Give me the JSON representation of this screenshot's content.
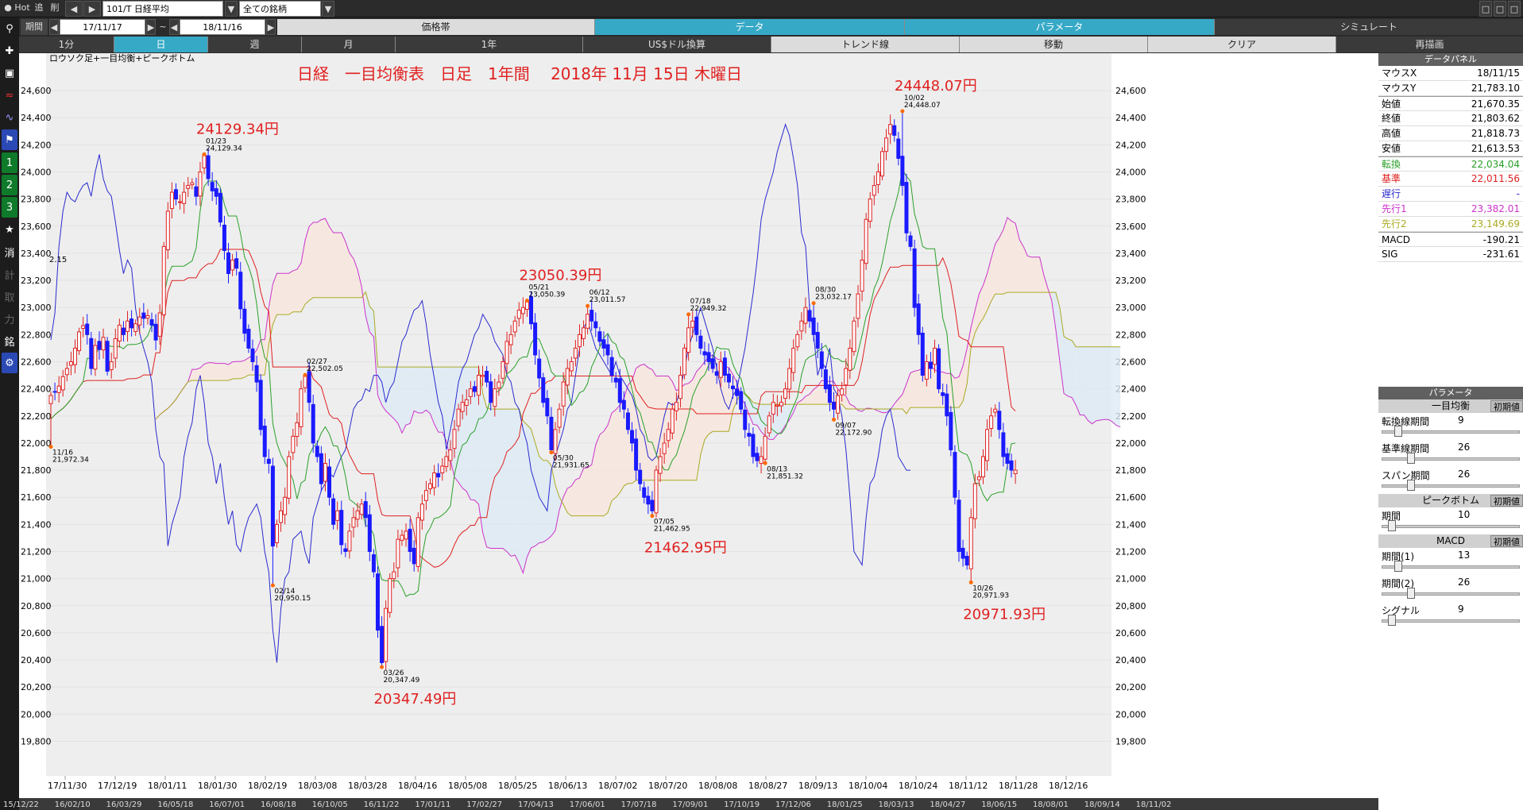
{
  "toolbar": {
    "hot": "Hot",
    "add": "追",
    "del": "削",
    "symbol": "101/T 日経平均",
    "list": "全ての銘柄",
    "period_label": "期間",
    "date_from": "17/11/17",
    "tilde": "~",
    "date_to": "18/11/16",
    "tabs": [
      "価格帯",
      "データ",
      "パラメータ",
      "シミュレート"
    ],
    "timeframes": [
      "1分",
      "日",
      "週",
      "月",
      "1年",
      "US$ドル換算",
      "トレンド線",
      "移動",
      "クリア",
      "再描画"
    ]
  },
  "leftbar": {
    "icons": [
      "search-icon",
      "crosshair-icon",
      "camera-icon",
      "chart-icon",
      "line-chart-icon",
      "flag-icon"
    ],
    "nums": [
      "1",
      "2",
      "3"
    ],
    "chars": [
      "消",
      "計",
      "取",
      "力",
      "銘"
    ]
  },
  "chart_data": {
    "type": "candlestick",
    "title": "日経　一目均衡表　日足　1年間　 2018年 11月 15日 木曜日",
    "legend_text": "ロウソク足+一目均衡+ピークボトム",
    "left_label": "2.15",
    "ylim": [
      19750,
      24700
    ],
    "y_ticks": [
      19800,
      20000,
      20200,
      20400,
      20600,
      20800,
      21000,
      21200,
      21400,
      21600,
      21800,
      22000,
      22200,
      22400,
      22600,
      22800,
      23000,
      23200,
      23400,
      23600,
      23800,
      24000,
      24200,
      24400,
      24600
    ],
    "x_labels": [
      "17/11/30",
      "17/12/19",
      "18/01/11",
      "18/01/30",
      "18/02/19",
      "18/03/08",
      "18/03/28",
      "18/04/16",
      "18/05/08",
      "18/05/25",
      "18/06/13",
      "18/07/02",
      "18/07/20",
      "18/08/08",
      "18/08/27",
      "18/09/13",
      "18/10/04",
      "18/10/24",
      "18/11/12",
      "18/11/28",
      "18/12/16"
    ],
    "bottom_dates": [
      "15/12/22",
      "16/02/10",
      "16/03/29",
      "16/05/18",
      "16/07/01",
      "16/08/18",
      "16/10/05",
      "16/11/22",
      "17/01/11",
      "17/02/27",
      "17/04/13",
      "17/06/01",
      "17/07/18",
      "17/09/01",
      "17/10/19",
      "17/12/06",
      "18/01/25",
      "18/03/13",
      "18/04/27",
      "18/06/15",
      "18/08/01",
      "18/09/14",
      "18/11/02"
    ],
    "peaks": [
      {
        "i": 0,
        "date": "11/16",
        "value": "21,972.34",
        "big": ""
      },
      {
        "i": 38,
        "date": "01/23",
        "value": "24,129.34",
        "big": "24129.34円"
      },
      {
        "i": 55,
        "date": "02/14",
        "value": "20,950.15",
        "big": ""
      },
      {
        "i": 63,
        "date": "02/27",
        "value": "22,502.05",
        "big": ""
      },
      {
        "i": 82,
        "date": "03/26",
        "value": "20,347.49",
        "big": "20347.49円"
      },
      {
        "i": 118,
        "date": "05/21",
        "value": "23,050.39",
        "big": "23050.39円"
      },
      {
        "i": 124,
        "date": "05/30",
        "value": "21,931.65",
        "big": ""
      },
      {
        "i": 133,
        "date": "06/12",
        "value": "23,011.57",
        "big": ""
      },
      {
        "i": 149,
        "date": "07/05",
        "value": "21,462.95",
        "big": "21462.95円"
      },
      {
        "i": 158,
        "date": "07/18",
        "value": "22,949.32",
        "big": ""
      },
      {
        "i": 177,
        "date": "08/13",
        "value": "21,851.32",
        "big": ""
      },
      {
        "i": 189,
        "date": "08/30",
        "value": "23,032.17",
        "big": ""
      },
      {
        "i": 194,
        "date": "09/07",
        "value": "22,172.90",
        "big": ""
      },
      {
        "i": 211,
        "date": "10/02",
        "value": "24,448.07",
        "big": "24448.07円"
      },
      {
        "i": 228,
        "date": "10/26",
        "value": "20,971.93",
        "big": "20971.93円"
      }
    ],
    "series": [
      {
        "name": "転換",
        "color": "#2aa02a"
      },
      {
        "name": "基準",
        "color": "#e02020"
      },
      {
        "name": "遅行",
        "color": "#2a2ad0"
      },
      {
        "name": "先行1",
        "color": "#cc33cc"
      },
      {
        "name": "先行2",
        "color": "#aaaa22"
      }
    ],
    "closes": [
      22351,
      22380,
      22420,
      22490,
      22550,
      22600,
      22700,
      22820,
      22866,
      22800,
      22550,
      22720,
      22690,
      22780,
      22530,
      22600,
      22770,
      22870,
      22800,
      22900,
      22850,
      22880,
      22930,
      22920,
      22940,
      22870,
      22760,
      22960,
      23450,
      23710,
      23850,
      23800,
      23780,
      23850,
      23900,
      23920,
      23820,
      24000,
      24129,
      23950,
      23860,
      23820,
      23630,
      23420,
      23250,
      23350,
      23290,
      22990,
      22810,
      22700,
      22600,
      22450,
      22100,
      21900,
      21850,
      21240,
      21400,
      21500,
      21600,
      21900,
      22050,
      22150,
      22400,
      22500,
      22300,
      22000,
      21900,
      21700,
      21850,
      21600,
      21400,
      21500,
      21250,
      21200,
      21350,
      21450,
      21500,
      21550,
      21450,
      21200,
      21050,
      20620,
      20380,
      20780,
      21000,
      21050,
      21290,
      21320,
      21350,
      21200,
      21110,
      21450,
      21550,
      21650,
      21700,
      21780,
      21750,
      21830,
      21900,
      21950,
      22100,
      22250,
      22300,
      22320,
      22400,
      22380,
      22500,
      22500,
      22450,
      22300,
      22400,
      22450,
      22600,
      22750,
      22800,
      22900,
      22980,
      23000,
      23050,
      22880,
      22650,
      22480,
      22300,
      22200,
      21950,
      22100,
      22250,
      22450,
      22550,
      22600,
      22700,
      22800,
      22850,
      22950,
      22900,
      22850,
      22750,
      22700,
      22650,
      22500,
      22450,
      22300,
      22250,
      22100,
      22000,
      21800,
      21700,
      21600,
      21550,
      21500,
      21800,
      21900,
      22000,
      22100,
      22250,
      22300,
      22500,
      22700,
      22850,
      22900,
      22800,
      22700,
      22650,
      22600,
      22550,
      22500,
      22600,
      22500,
      22450,
      22400,
      22350,
      22250,
      22100,
      22050,
      21900,
      21870,
      21900,
      22050,
      22200,
      22300,
      22280,
      22300,
      22400,
      22550,
      22700,
      22800,
      22900,
      23000,
      22900,
      22800,
      22700,
      22550,
      22400,
      22300,
      22250,
      22350,
      22400,
      22550,
      22700,
      22900,
      23100,
      23350,
      23650,
      23800,
      23900,
      24000,
      24150,
      24250,
      24350,
      24270,
      24100,
      23900,
      23550,
      23450,
      23000,
      22800,
      22500,
      22600,
      22550,
      22700,
      22400,
      22350,
      22200,
      21950,
      21600,
      21200,
      21150,
      21100,
      21450,
      21700,
      21750,
      21900,
      22100,
      22200,
      22250,
      22100,
      21900,
      21850,
      21800,
      21800
    ]
  },
  "panel": {
    "title": "データパネル",
    "rows": [
      {
        "label": "マウスX",
        "value": "18/11/15",
        "color": "#000000"
      },
      {
        "label": "マウスY",
        "value": "21,783.10",
        "color": "#000000"
      },
      {
        "label": "始値",
        "value": "21,670.35",
        "color": "#000000"
      },
      {
        "label": "終値",
        "value": "21,803.62",
        "color": "#000000"
      },
      {
        "label": "高値",
        "value": "21,818.73",
        "color": "#000000"
      },
      {
        "label": "安値",
        "value": "21,613.53",
        "color": "#000000"
      },
      {
        "label": "転換",
        "value": "22,034.04",
        "color": "#2aa02a"
      },
      {
        "label": "基準",
        "value": "22,011.56",
        "color": "#e02020"
      },
      {
        "label": "遅行",
        "value": "-",
        "color": "#2a2ad0"
      },
      {
        "label": "先行1",
        "value": "23,382.01",
        "color": "#cc33cc"
      },
      {
        "label": "先行2",
        "value": "23,149.69",
        "color": "#aaaa22"
      },
      {
        "label": "MACD",
        "value": "-190.21",
        "color": "#000000"
      },
      {
        "label": "SIG",
        "value": "-231.61",
        "color": "#000000"
      }
    ],
    "param_title": "パラメータ",
    "sections": [
      {
        "title": "一目均衡",
        "init": "初期値",
        "params": [
          {
            "label": "転換線期間",
            "value": "9",
            "pos": 0.1
          },
          {
            "label": "基準線期間",
            "value": "26",
            "pos": 0.2
          },
          {
            "label": "スパン期間",
            "value": "26",
            "pos": 0.2
          }
        ]
      },
      {
        "title": "ピークボトム",
        "init": "初期値",
        "params": [
          {
            "label": "期間",
            "value": "10",
            "pos": 0.05
          }
        ]
      },
      {
        "title": "MACD",
        "init": "初期値",
        "params": [
          {
            "label": "期間(1)",
            "value": "13",
            "pos": 0.1
          },
          {
            "label": "期間(2)",
            "value": "26",
            "pos": 0.2
          },
          {
            "label": "シグナル",
            "value": "9",
            "pos": 0.05
          }
        ]
      }
    ]
  }
}
